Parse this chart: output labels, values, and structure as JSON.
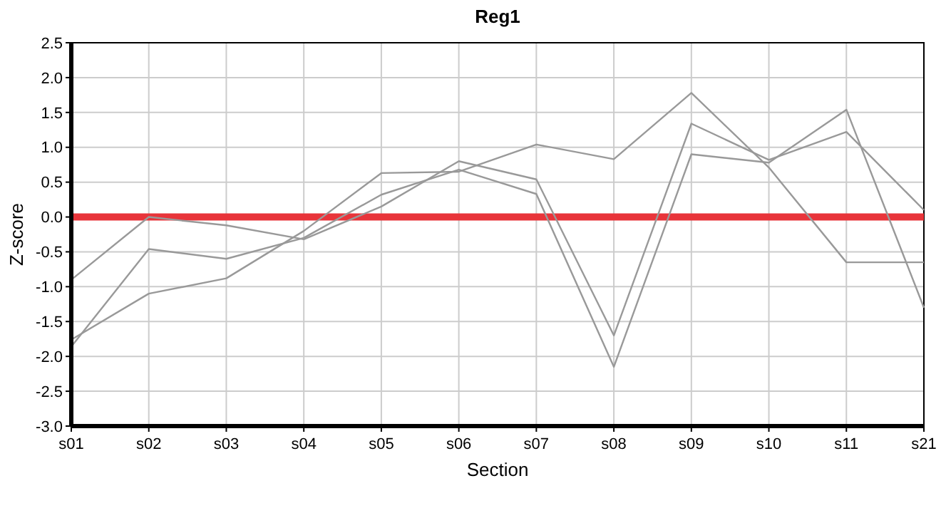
{
  "chart_data": {
    "type": "line",
    "title": "Reg1",
    "xlabel": "Section",
    "ylabel": "Z-score",
    "categories": [
      "s01",
      "s02",
      "s03",
      "s04",
      "s05",
      "s06",
      "s07",
      "s08",
      "s09",
      "s10",
      "s11",
      "s21"
    ],
    "series": [
      {
        "color": "#999999",
        "values": [
          -0.9,
          0,
          -0.12,
          -0.32,
          0.15,
          0.8,
          0.54,
          -1.7,
          1.34,
          0.82,
          1.22,
          0.1
        ]
      },
      {
        "color": "#999999",
        "values": [
          -1.86,
          -0.46,
          -0.6,
          -0.3,
          0.32,
          0.68,
          0.33,
          -2.15,
          0.9,
          0.78,
          1.54,
          -1.3
        ]
      },
      {
        "color": "#999999",
        "values": [
          -1.76,
          -1.1,
          -0.88,
          -0.2,
          0.63,
          0.65,
          1.04,
          0.83,
          1.78,
          0.71,
          -0.65,
          -0.65
        ]
      }
    ],
    "ylim": [
      -3,
      2.5
    ],
    "yticks": [
      {
        "value": -3,
        "label": "-3.0"
      },
      {
        "value": -2.5,
        "label": "-2.5"
      },
      {
        "value": -2,
        "label": "-2.0"
      },
      {
        "value": -1.5,
        "label": "-1.5"
      },
      {
        "value": -1,
        "label": "-1.0"
      },
      {
        "value": -0.5,
        "label": "-0.5"
      },
      {
        "value": 0,
        "label": "0.0"
      },
      {
        "value": 0.5,
        "label": "0.5"
      },
      {
        "value": 1,
        "label": "1.0"
      },
      {
        "value": 1.5,
        "label": "1.5"
      },
      {
        "value": 2,
        "label": "2.0"
      },
      {
        "value": 2.5,
        "label": "2.5"
      }
    ],
    "ref_lines": [
      {
        "axis": "y",
        "value": 0,
        "color": "#e8343a"
      }
    ],
    "grid": true,
    "marker": "none",
    "line_style": "solid"
  }
}
